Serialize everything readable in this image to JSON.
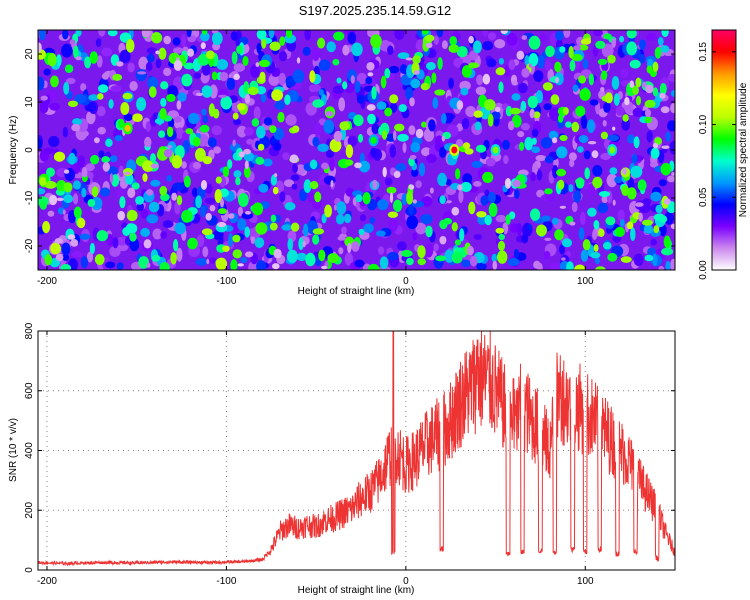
{
  "title": "S197.2025.235.14.59.G12",
  "chart_data": [
    {
      "type": "heatmap",
      "xlabel": "Height of straight line (km)",
      "ylabel": "Frequency (Hz)",
      "xlim": [
        -205,
        150
      ],
      "ylim": [
        -25,
        25
      ],
      "xticks": [
        -200,
        -100,
        0,
        100
      ],
      "xtick_labels": [
        "-200",
        "-100",
        "0",
        "100"
      ],
      "yticks": [
        -20,
        -10,
        0,
        10,
        20
      ],
      "ytick_labels": [
        "-20",
        "-10",
        "0",
        "10",
        "20"
      ],
      "colorbar": {
        "label": "Normalized spectral amplitude",
        "range": [
          0,
          0.165
        ],
        "ticks": [
          0,
          0.05,
          0.1,
          0.15
        ],
        "tick_labels": [
          "0.00",
          "0.05",
          "0.10",
          "0.15"
        ],
        "colors": [
          "#ffffff",
          "#cc88ee",
          "#7a00ff",
          "#0000ff",
          "#0099ff",
          "#00ffcc",
          "#00ff00",
          "#bbff00",
          "#ffff00",
          "#ff9900",
          "#ff0000",
          "#ff0066"
        ]
      },
      "hotspots": [
        {
          "x": 27,
          "y": 0,
          "value": 0.155
        },
        {
          "x": -155,
          "y": 4.5,
          "value": 0.13
        },
        {
          "x": 50,
          "y": 0,
          "value": 0.1
        },
        {
          "x": 115,
          "y": 0,
          "value": 0.1
        },
        {
          "x": -18,
          "y": 2,
          "value": 0.09
        }
      ]
    },
    {
      "type": "line",
      "xlabel": "Height of straight line (km)",
      "ylabel": "SNR (10 * v/v)",
      "xlim": [
        -205,
        150
      ],
      "ylim": [
        0,
        800
      ],
      "xticks": [
        -200,
        -100,
        0,
        100
      ],
      "xtick_labels": [
        "-200",
        "-100",
        "0",
        "100"
      ],
      "yticks": [
        0,
        200,
        400,
        600,
        800
      ],
      "ytick_labels": [
        "0",
        "200",
        "400",
        "600",
        "800"
      ],
      "color": "#ee3333",
      "series": [
        {
          "name": "SNR",
          "x": [
            -205,
            -190,
            -170,
            -150,
            -130,
            -110,
            -90,
            -80,
            -75,
            -70,
            -65,
            -60,
            -55,
            -50,
            -45,
            -40,
            -35,
            -30,
            -25,
            -20,
            -15,
            -10,
            -7,
            -5,
            0,
            5,
            10,
            15,
            20,
            25,
            30,
            35,
            40,
            45,
            50,
            55,
            60,
            65,
            70,
            75,
            80,
            85,
            90,
            95,
            100,
            105,
            110,
            115,
            120,
            125,
            130,
            135,
            140,
            145,
            150
          ],
          "y": [
            25,
            22,
            25,
            24,
            27,
            25,
            28,
            35,
            70,
            130,
            150,
            140,
            150,
            145,
            165,
            175,
            190,
            205,
            240,
            260,
            300,
            370,
            410,
            400,
            350,
            370,
            410,
            440,
            460,
            500,
            560,
            600,
            640,
            640,
            600,
            540,
            470,
            560,
            500,
            470,
            400,
            600,
            560,
            550,
            530,
            500,
            470,
            430,
            400,
            360,
            300,
            250,
            200,
            120,
            60
          ]
        }
      ],
      "dropouts": [
        {
          "x": -7,
          "value": 60
        },
        {
          "x": 20,
          "value": 70
        },
        {
          "x": 57,
          "value": 55
        },
        {
          "x": 65,
          "value": 60
        },
        {
          "x": 75,
          "value": 65
        },
        {
          "x": 83,
          "value": 60
        },
        {
          "x": 93,
          "value": 70
        },
        {
          "x": 100,
          "value": 60
        },
        {
          "x": 108,
          "value": 70
        },
        {
          "x": 118,
          "value": 55
        },
        {
          "x": 128,
          "value": 60
        },
        {
          "x": 140,
          "value": 40
        }
      ],
      "peaks": [
        {
          "x": -7,
          "value": 800
        },
        {
          "x": 40,
          "value": 770
        },
        {
          "x": 60,
          "value": 640
        },
        {
          "x": 85,
          "value": 660
        }
      ]
    }
  ]
}
